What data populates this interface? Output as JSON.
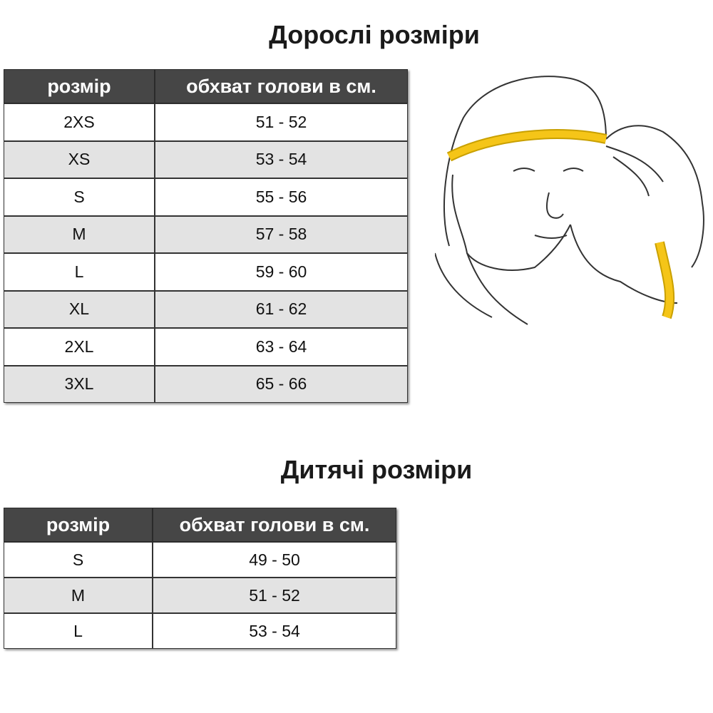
{
  "adult": {
    "title": "Дорослі розміри",
    "header": [
      "розмір",
      "обхват голови в см."
    ],
    "rows": [
      [
        "2XS",
        "51 - 52"
      ],
      [
        "XS",
        "53 - 54"
      ],
      [
        "S",
        "55 - 56"
      ],
      [
        "M",
        "57 - 58"
      ],
      [
        "L",
        "59 - 60"
      ],
      [
        "XL",
        "61 - 62"
      ],
      [
        "2XL",
        "63 - 64"
      ],
      [
        "3XL",
        "65 - 66"
      ]
    ]
  },
  "kids": {
    "title": "Дитячі розміри",
    "header": [
      "розмір",
      "обхват голови в см."
    ],
    "rows": [
      [
        "S",
        "49 - 50"
      ],
      [
        "M",
        "51 - 52"
      ],
      [
        "L",
        "53 - 54"
      ]
    ]
  }
}
